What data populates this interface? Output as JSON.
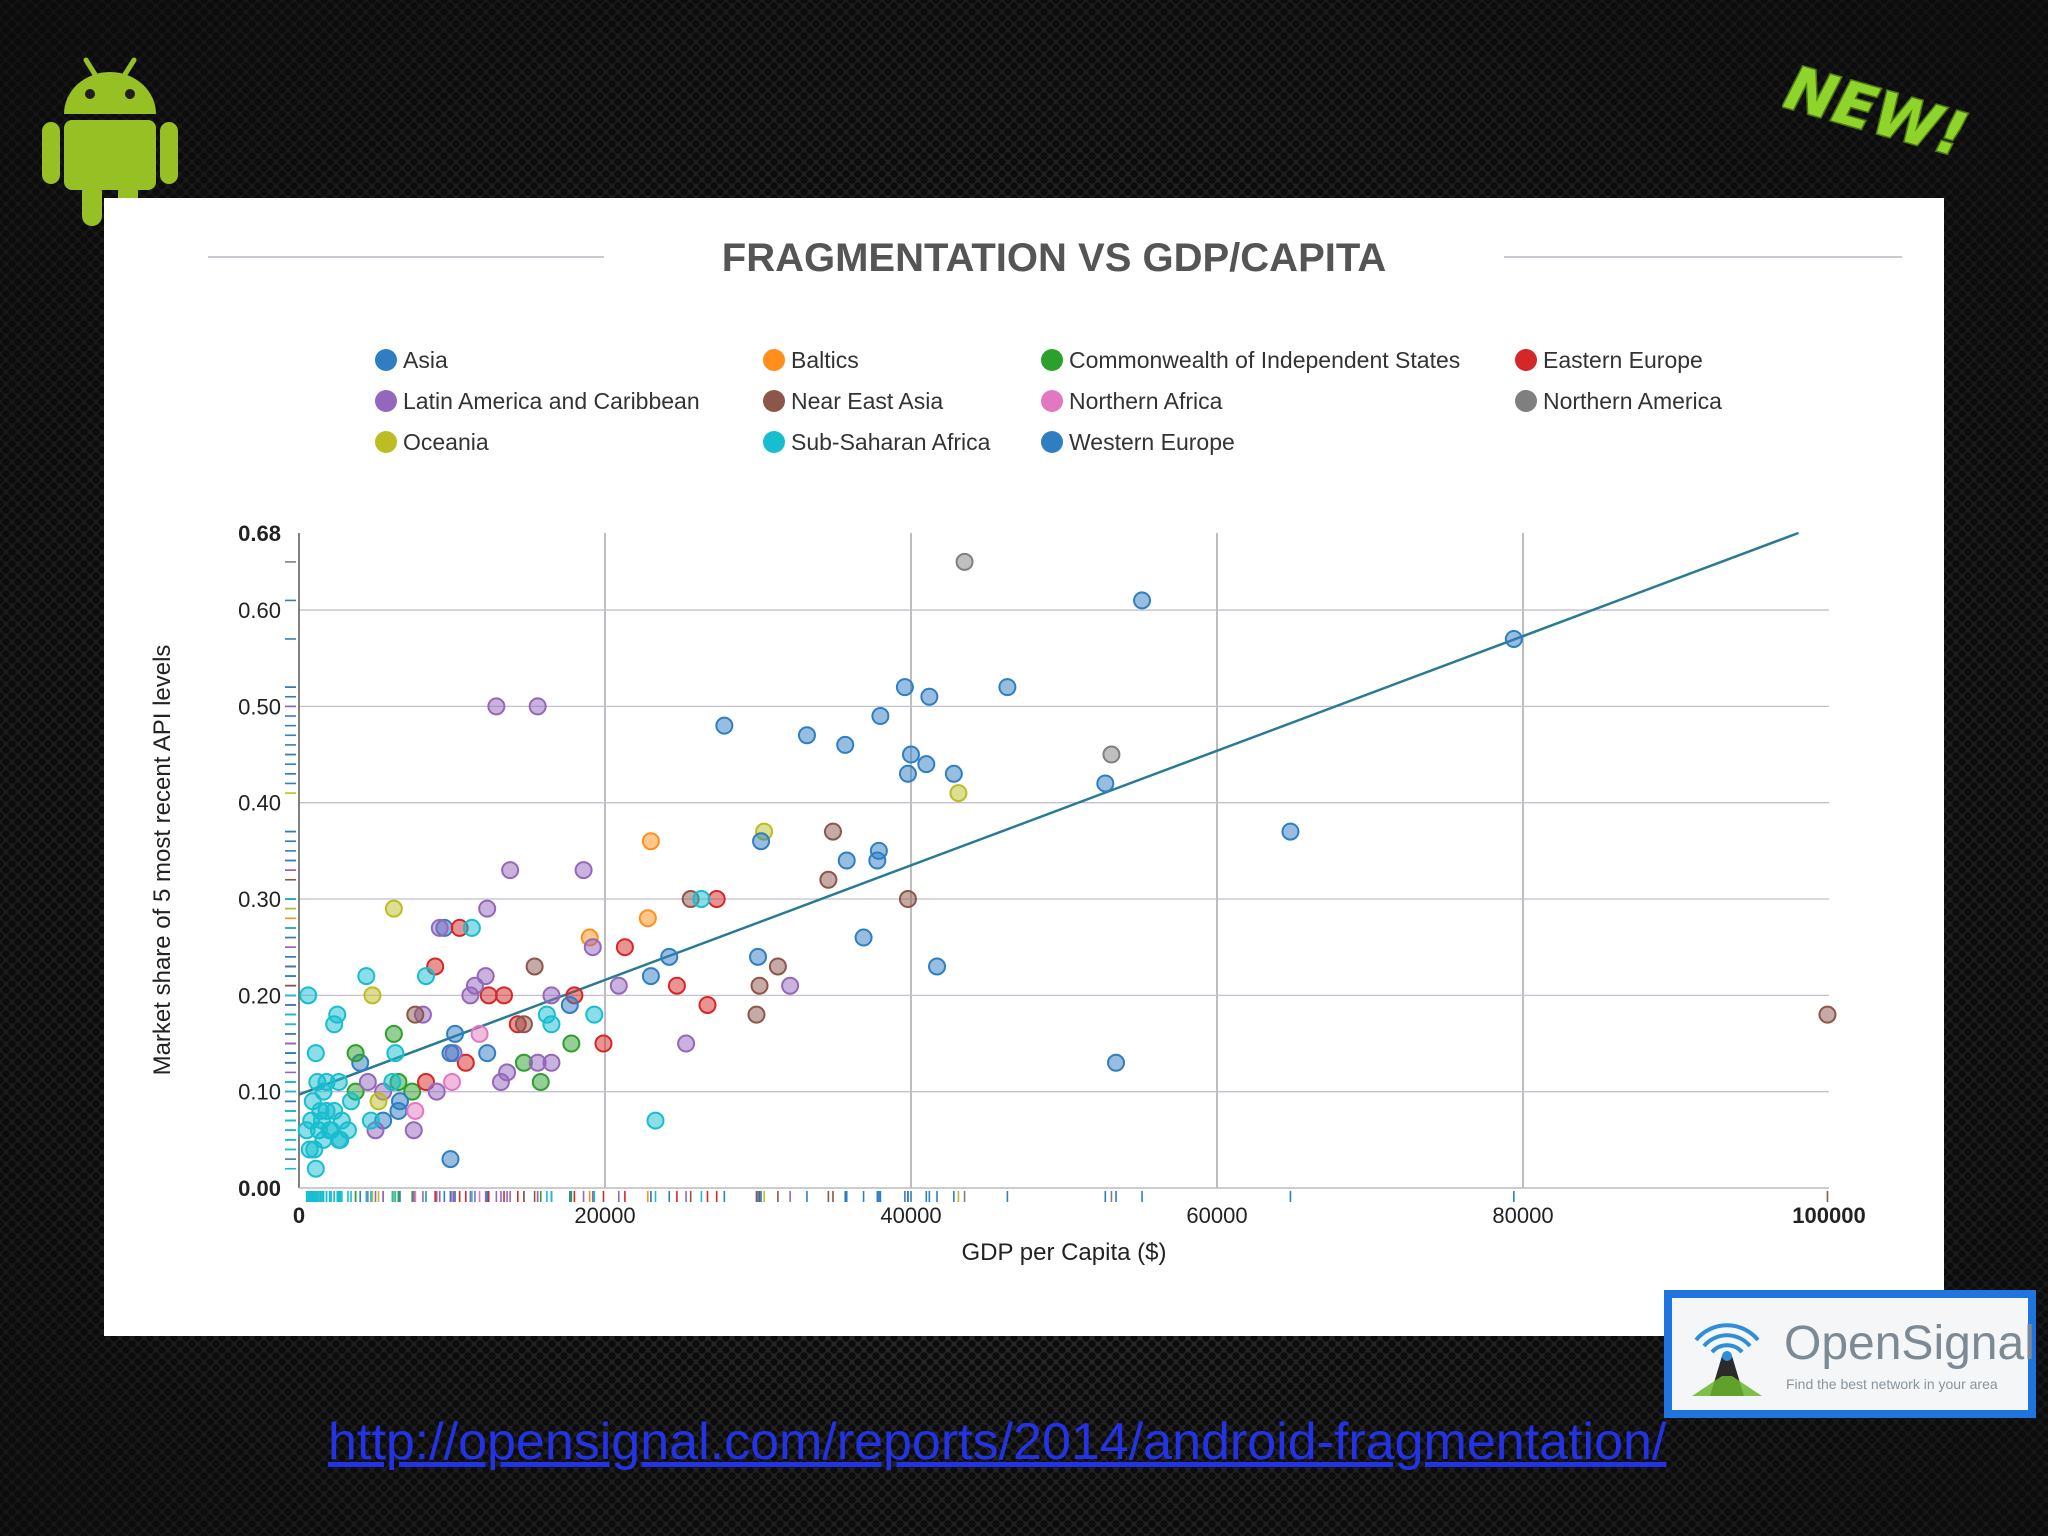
{
  "slide": {
    "link_text": "http://opensignal.com/reports/2014/android-fragmentation/",
    "badge_text": "NEW!",
    "logo": {
      "name": "OpenSignal",
      "tagline": "Find the best network in your area"
    }
  },
  "chart_data": {
    "type": "scatter",
    "title": "FRAGMENTATION VS GDP/CAPITA",
    "xlabel": "GDP per Capita ($)",
    "ylabel": "Market share of 5 most recent API levels",
    "xlim": [
      0,
      100000
    ],
    "ylim": [
      0,
      0.68
    ],
    "x_ticks": [
      "0",
      "20000",
      "40000",
      "60000",
      "80000",
      "100000"
    ],
    "y_ticks": [
      "0.00",
      "0.10",
      "0.20",
      "0.30",
      "0.40",
      "0.50",
      "0.60",
      "0.68"
    ],
    "x_tick_values": [
      0,
      20000,
      40000,
      60000,
      80000,
      100000
    ],
    "y_tick_values": [
      0,
      0.1,
      0.2,
      0.3,
      0.4,
      0.5,
      0.6,
      0.68
    ],
    "grid": true,
    "legend_position": "top",
    "trend_line": {
      "x": [
        0,
        98000
      ],
      "y": [
        0.097,
        0.68
      ],
      "color": "#2a7a92"
    },
    "series": [
      {
        "name": "Asia",
        "color": "#2f7ec2",
        "points": [
          [
            9500,
            0.27
          ],
          [
            6500,
            0.08
          ],
          [
            4000,
            0.13
          ],
          [
            5500,
            0.07
          ]
        ]
      },
      {
        "name": "Baltics",
        "color": "#ff8f1a",
        "points": [
          [
            23000,
            0.36
          ],
          [
            22800,
            0.28
          ],
          [
            19000,
            0.26
          ]
        ]
      },
      {
        "name": "Commonwealth of Independent States",
        "color": "#2ca02c",
        "points": [
          [
            3700,
            0.14
          ],
          [
            6200,
            0.16
          ],
          [
            17800,
            0.15
          ],
          [
            14700,
            0.13
          ],
          [
            15800,
            0.11
          ],
          [
            7400,
            0.1
          ],
          [
            3700,
            0.1
          ],
          [
            6500,
            0.11
          ]
        ]
      },
      {
        "name": "Eastern Europe",
        "color": "#d62728",
        "points": [
          [
            27300,
            0.3
          ],
          [
            21300,
            0.25
          ],
          [
            24700,
            0.21
          ],
          [
            26700,
            0.19
          ],
          [
            19900,
            0.15
          ],
          [
            13400,
            0.2
          ],
          [
            10500,
            0.27
          ],
          [
            8900,
            0.23
          ],
          [
            14300,
            0.17
          ],
          [
            18000,
            0.2
          ],
          [
            8300,
            0.11
          ],
          [
            10900,
            0.13
          ],
          [
            12400,
            0.2
          ]
        ]
      },
      {
        "name": "Latin America and Caribbean",
        "color": "#9467bd",
        "points": [
          [
            12900,
            0.5
          ],
          [
            15600,
            0.5
          ],
          [
            13800,
            0.33
          ],
          [
            18600,
            0.33
          ],
          [
            12300,
            0.29
          ],
          [
            9200,
            0.27
          ],
          [
            19200,
            0.25
          ],
          [
            12200,
            0.22
          ],
          [
            20900,
            0.21
          ],
          [
            16500,
            0.2
          ],
          [
            32100,
            0.21
          ],
          [
            25300,
            0.15
          ],
          [
            11200,
            0.2
          ],
          [
            11500,
            0.21
          ],
          [
            8100,
            0.18
          ],
          [
            5500,
            0.1
          ],
          [
            9000,
            0.1
          ],
          [
            10100,
            0.14
          ],
          [
            13600,
            0.12
          ],
          [
            15600,
            0.13
          ],
          [
            16500,
            0.13
          ],
          [
            4500,
            0.11
          ],
          [
            5000,
            0.06
          ],
          [
            7500,
            0.06
          ],
          [
            13200,
            0.11
          ]
        ]
      },
      {
        "name": "Near East Asia",
        "color": "#8c564b",
        "points": [
          [
            34900,
            0.37
          ],
          [
            34600,
            0.32
          ],
          [
            25600,
            0.3
          ],
          [
            39800,
            0.3
          ],
          [
            15400,
            0.23
          ],
          [
            31300,
            0.23
          ],
          [
            30100,
            0.21
          ],
          [
            29900,
            0.18
          ],
          [
            7600,
            0.18
          ],
          [
            14700,
            0.17
          ],
          [
            99900,
            0.18
          ]
        ]
      },
      {
        "name": "Northern Africa",
        "color": "#e377c2",
        "points": [
          [
            11800,
            0.16
          ],
          [
            10000,
            0.11
          ],
          [
            7600,
            0.08
          ]
        ]
      },
      {
        "name": "Northern America",
        "color": "#7f7f7f",
        "points": [
          [
            43500,
            0.65
          ],
          [
            53100,
            0.45
          ]
        ]
      },
      {
        "name": "Oceania",
        "color": "#bcbd22",
        "points": [
          [
            30400,
            0.37
          ],
          [
            43100,
            0.41
          ],
          [
            6200,
            0.29
          ],
          [
            4800,
            0.2
          ],
          [
            5200,
            0.09
          ]
        ]
      },
      {
        "name": "Sub-Saharan Africa",
        "color": "#17becf",
        "points": [
          [
            11300,
            0.27
          ],
          [
            26300,
            0.3
          ],
          [
            4400,
            0.22
          ],
          [
            8300,
            0.22
          ],
          [
            16200,
            0.18
          ],
          [
            19300,
            0.18
          ],
          [
            16500,
            0.17
          ],
          [
            600,
            0.2
          ],
          [
            2500,
            0.18
          ],
          [
            2300,
            0.17
          ],
          [
            1100,
            0.14
          ],
          [
            23300,
            0.07
          ],
          [
            1000,
            0.04
          ],
          [
            1100,
            0.02
          ],
          [
            1600,
            0.05
          ],
          [
            1800,
            0.08
          ],
          [
            2100,
            0.06
          ],
          [
            2600,
            0.05
          ],
          [
            1200,
            0.11
          ],
          [
            1800,
            0.11
          ],
          [
            2600,
            0.11
          ],
          [
            500,
            0.06
          ],
          [
            800,
            0.07
          ],
          [
            900,
            0.09
          ],
          [
            1300,
            0.06
          ],
          [
            1500,
            0.07
          ],
          [
            2000,
            0.06
          ],
          [
            2300,
            0.08
          ],
          [
            2800,
            0.07
          ],
          [
            3200,
            0.06
          ],
          [
            3400,
            0.09
          ],
          [
            1400,
            0.08
          ],
          [
            700,
            0.04
          ],
          [
            2700,
            0.05
          ],
          [
            4700,
            0.07
          ],
          [
            1600,
            0.1
          ],
          [
            6300,
            0.14
          ],
          [
            6100,
            0.11
          ]
        ]
      },
      {
        "name": "Western Europe",
        "color": "#2f7ec2",
        "points": [
          [
            55100,
            0.61
          ],
          [
            79400,
            0.57
          ],
          [
            46300,
            0.52
          ],
          [
            39600,
            0.52
          ],
          [
            41200,
            0.51
          ],
          [
            38000,
            0.49
          ],
          [
            27800,
            0.48
          ],
          [
            33200,
            0.47
          ],
          [
            35700,
            0.46
          ],
          [
            40000,
            0.45
          ],
          [
            41000,
            0.44
          ],
          [
            39800,
            0.43
          ],
          [
            42800,
            0.43
          ],
          [
            52700,
            0.42
          ],
          [
            64800,
            0.37
          ],
          [
            30200,
            0.36
          ],
          [
            37900,
            0.35
          ],
          [
            35800,
            0.34
          ],
          [
            37800,
            0.34
          ],
          [
            36900,
            0.26
          ],
          [
            30000,
            0.24
          ],
          [
            24200,
            0.24
          ],
          [
            23000,
            0.22
          ],
          [
            41700,
            0.23
          ],
          [
            53400,
            0.13
          ],
          [
            9900,
            0.03
          ],
          [
            12300,
            0.14
          ],
          [
            9900,
            0.14
          ],
          [
            10200,
            0.16
          ],
          [
            17700,
            0.19
          ],
          [
            6600,
            0.09
          ]
        ]
      }
    ]
  }
}
